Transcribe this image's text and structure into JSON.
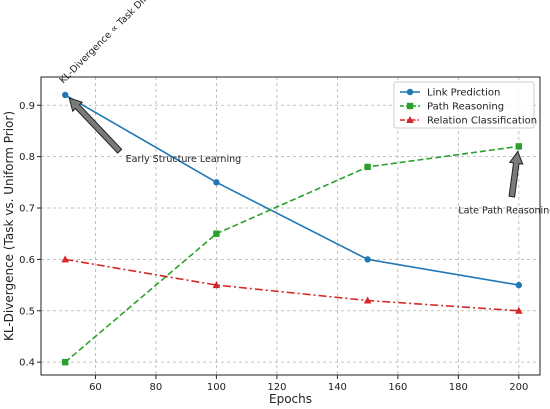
{
  "chart_data": {
    "type": "line",
    "title": "",
    "xlabel": "Epochs",
    "ylabel": "KL-Divergence (Task vs. Uniform Prior)",
    "xlim": [
      42,
      207
    ],
    "ylim": [
      0.375,
      0.955
    ],
    "xticks": [
      60,
      80,
      100,
      120,
      140,
      160,
      180,
      200
    ],
    "yticks": [
      0.4,
      0.5,
      0.6,
      0.7,
      0.8,
      0.9
    ],
    "ytick_labels": [
      "0.4",
      "0.5",
      "0.6",
      "0.7",
      "0.8",
      "0.9"
    ],
    "grid": true,
    "legend_position": "top-right",
    "x": [
      50,
      100,
      150,
      200
    ],
    "series": [
      {
        "name": "Link Prediction",
        "values": [
          0.92,
          0.75,
          0.6,
          0.55
        ],
        "color": "#1f77b4",
        "linestyle": "solid",
        "marker": "circle"
      },
      {
        "name": "Path Reasoning",
        "values": [
          0.4,
          0.65,
          0.78,
          0.82
        ],
        "color": "#2ca02c",
        "linestyle": "dashed",
        "marker": "square"
      },
      {
        "name": "Relation Classification",
        "values": [
          0.6,
          0.55,
          0.52,
          0.5
        ],
        "color": "#d62728",
        "linestyle": "dashdot",
        "marker": "triangle"
      }
    ],
    "annotations": [
      {
        "text": "KL-Divergence ∝ Task Difficulty",
        "target": [
          50,
          0.92
        ],
        "rotated": true
      },
      {
        "text": "Early Structure Learning",
        "target": [
          50,
          0.92
        ],
        "text_at": [
          70,
          0.795
        ]
      },
      {
        "text": "Late Path Reasoning",
        "target": [
          200,
          0.82
        ],
        "text_at": [
          180,
          0.695
        ]
      }
    ]
  }
}
